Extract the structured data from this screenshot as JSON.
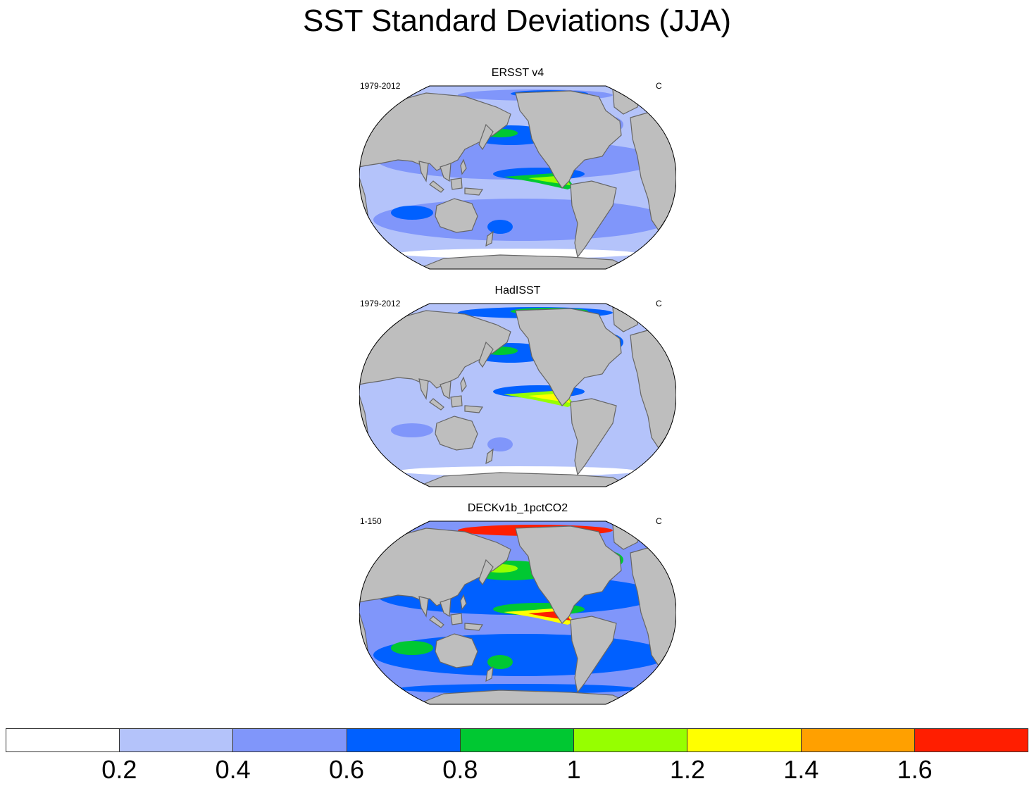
{
  "title": "SST Standard Deviations (JJA)",
  "colors": {
    "land": "#bebebe",
    "coast": "#666666"
  },
  "panels": [
    {
      "title": "ERSST v4",
      "left": "1979-2012",
      "right": "C",
      "field_levels": {
        "ocean_base": 1,
        "subtropics": 2,
        "north_pacific": 3,
        "north_atlantic": 2,
        "east_pacific_band": 3,
        "nino_core": 4,
        "nino_peak": 5,
        "southern_ocean_rim": 0,
        "arctic": 2
      }
    },
    {
      "title": "HadISST",
      "left": "1979-2012",
      "right": "C",
      "field_levels": {
        "ocean_base": 1,
        "subtropics": 1,
        "north_pacific": 3,
        "north_atlantic": 3,
        "east_pacific_band": 3,
        "nino_core": 5,
        "nino_peak": 6,
        "southern_ocean_rim": 0,
        "arctic": 3
      }
    },
    {
      "title": "DECKv1b_1pctCO2",
      "left": "1-150",
      "right": "C",
      "field_levels": {
        "ocean_base": 2,
        "subtropics": 3,
        "north_pacific": 4,
        "north_atlantic": 4,
        "east_pacific_band": 4,
        "nino_core": 6,
        "nino_peak": 9,
        "southern_ocean_rim": 3,
        "arctic": 8
      }
    }
  ],
  "colorbar": {
    "colors": [
      "#ffffff",
      "#b4c3fa",
      "#8096fa",
      "#0060ff",
      "#00c832",
      "#96ff00",
      "#ffff00",
      "#ffa000",
      "#ff1e00"
    ],
    "labels": [
      "0.2",
      "0.4",
      "0.6",
      "0.8",
      "1",
      "1.2",
      "1.4",
      "1.6"
    ]
  }
}
